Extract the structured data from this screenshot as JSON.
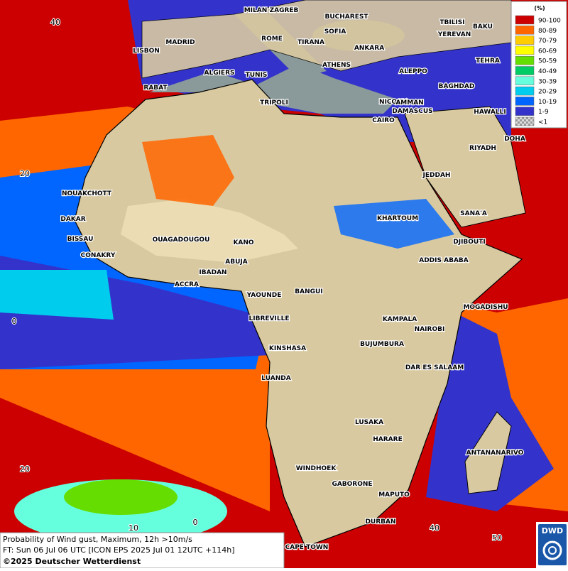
{
  "map": {
    "cities": [
      "MILAN",
      "ZAGREB",
      "BUCHAREST",
      "TBILISI",
      "BAKU",
      "YEREVAN",
      "TEHRA",
      "ROME",
      "SOFIA",
      "TIRANA",
      "ANKARA",
      "LISBON",
      "MADRID",
      "ALGIERS",
      "TUNIS",
      "ATHENS",
      "ALEPPO",
      "NICOSIA",
      "RABAT",
      "TRIPOLI",
      "DAMASCUS",
      "AMMAN",
      "BAGHDAD",
      "HAWALLI",
      "CAIRO",
      "DOHA",
      "RIYADH",
      "JEDDAH",
      "NOUAKCHOTT",
      "DAKAR",
      "BISSAU",
      "CONAKRY",
      "OUAGADOUGOU",
      "KANO",
      "KHARTOUM",
      "SANA'A",
      "DJIBOUTI",
      "ADDIS ABABA",
      "ABUJA",
      "IBADAN",
      "ACCRA",
      "YAOUNDE",
      "BANGUI",
      "MOGADISHU",
      "LIBREVILLE",
      "KAMPALA",
      "NAIROBI",
      "KINSHASA",
      "BUJUMBURA",
      "DAR ES SALAAM",
      "LUANDA",
      "LUSAKA",
      "HARARE",
      "ANTANANARIVO",
      "WINDHOEK",
      "GABORONE",
      "MAPUTO",
      "DURBAN",
      "CAPE TOWN"
    ],
    "grid_labels": [
      "40",
      "20",
      "0",
      "20",
      "10",
      "0",
      "40",
      "50"
    ]
  },
  "legend": {
    "title": "(%)",
    "entries": [
      {
        "label": "90-100",
        "color": "#cc0000"
      },
      {
        "label": "80-89",
        "color": "#ff6600"
      },
      {
        "label": "70-79",
        "color": "#ffcc00"
      },
      {
        "label": "60-69",
        "color": "#ffff00"
      },
      {
        "label": "50-59",
        "color": "#66dd00"
      },
      {
        "label": "40-49",
        "color": "#00cc66"
      },
      {
        "label": "30-39",
        "color": "#66ffdd"
      },
      {
        "label": "20-29",
        "color": "#00ccee"
      },
      {
        "label": "10-19",
        "color": "#0066ff"
      },
      {
        "label": "1-9",
        "color": "#3333cc"
      },
      {
        "label": "<1",
        "color": "#bbbbbb"
      }
    ]
  },
  "info": {
    "line1": "Probability of Wind gust, Maximum, 12h >10m/s",
    "line2": "FT: Sun 06 Jul 06 UTC [ICON EPS 2025 Jul 01 12UTC +114h]",
    "line3": "©2025 Deutscher Wetterdienst"
  },
  "logo": "DWD"
}
